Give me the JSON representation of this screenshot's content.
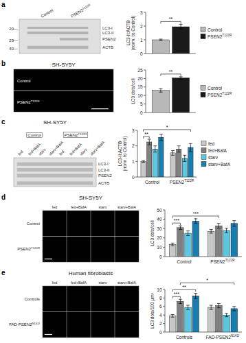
{
  "chart_data": [
    {
      "type": "bar",
      "ylabel": "LC3-II:ACTB\n(norm. to Control)",
      "categories": [
        null
      ],
      "series": [
        {
          "name": "Control",
          "color": "#b8b8b8",
          "values": [
            1.0
          ],
          "errors": [
            0.05
          ]
        },
        {
          "name": "PSEN2T122R",
          "color": "#1a1a1a",
          "values": [
            1.95
          ],
          "errors": [
            0.18
          ]
        }
      ],
      "ylim": [
        0,
        3
      ],
      "yticks": [
        0,
        1,
        2,
        3
      ],
      "legend": "right",
      "tick_labels": "y",
      "annotations": [
        "a",
        "LC3-I",
        "LC3-II",
        "PSEN2",
        "ACTB",
        "20—",
        "29—",
        "40—",
        "Control",
        "PSEN2T122R",
        "**"
      ]
    },
    {
      "type": "bar",
      "title": "SH-SY5Y",
      "ylabel": "LC3 dots/cell",
      "categories": [
        null
      ],
      "series": [
        {
          "name": "Control",
          "color": "#b8b8b8",
          "values": [
            13.0
          ],
          "errors": [
            1.0
          ]
        },
        {
          "name": "PSEN2T122R",
          "color": "#1a1a1a",
          "values": [
            20.3
          ],
          "errors": [
            0.7
          ]
        }
      ],
      "ylim": [
        0,
        25
      ],
      "yticks": [
        0,
        5,
        10,
        15,
        20,
        25
      ],
      "legend": "right",
      "tick_labels": "y",
      "annotations": [
        "b",
        "Control",
        "PSEN2T122R",
        "**"
      ]
    },
    {
      "type": "bar",
      "title": "SH-SY5Y",
      "ylabel": "LC3-II:ACTB\n(norm. to Control)",
      "categories": [
        "Control",
        "PSEN2T122R"
      ],
      "series": [
        {
          "name": "fed",
          "color": "#c8c8c8",
          "values": [
            1.0,
            1.55
          ],
          "errors": [
            0.05,
            0.15
          ]
        },
        {
          "name": "fed+BafA",
          "color": "#808080",
          "values": [
            2.25,
            1.8
          ],
          "errors": [
            0.18,
            0.2
          ]
        },
        {
          "name": "starv",
          "color": "#5bc8e0",
          "values": [
            1.8,
            1.2
          ],
          "errors": [
            0.2,
            0.2
          ]
        },
        {
          "name": "starv+BafA",
          "color": "#1a7db0",
          "values": [
            2.55,
            1.9
          ],
          "errors": [
            0.2,
            0.25
          ]
        }
      ],
      "ylim": [
        0,
        3
      ],
      "yticks": [
        0,
        1,
        2,
        3
      ],
      "legend": "right",
      "annotations": [
        "c",
        "LC3-I",
        "LC3-II",
        "PSEN2",
        "ACTB",
        "Control",
        "PSEN2T122R",
        "fed",
        "fed+BafA",
        "starv",
        "starv+BafA",
        "fed",
        "fed+BafA",
        "starv",
        "starv+BafA",
        "**",
        "*"
      ]
    },
    {
      "type": "bar",
      "title": "SH-SY5Y",
      "ylabel": "LC3 dots/cell",
      "categories": [
        "Control",
        "PSEN2T122R"
      ],
      "series": [
        {
          "color": "#c8c8c8",
          "values": [
            13.0,
            27.0
          ],
          "errors": [
            1.5,
            2.0
          ]
        },
        {
          "color": "#808080",
          "values": [
            31.0,
            33.0
          ],
          "errors": [
            2.0,
            2.5
          ]
        },
        {
          "color": "#5bc8e0",
          "values": [
            25.0,
            28.0
          ],
          "errors": [
            2.5,
            2.5
          ]
        },
        {
          "color": "#1a7db0",
          "values": [
            38.0,
            35.5
          ],
          "errors": [
            2.5,
            3.0
          ]
        }
      ],
      "ylim": [
        0,
        50
      ],
      "yticks": [
        0,
        10,
        20,
        30,
        40,
        50
      ],
      "annotations": [
        "d",
        "Control",
        "PSEN2T122R",
        "fed",
        "fed+BafA",
        "starv",
        "starv+BafA",
        "***",
        "***"
      ]
    },
    {
      "type": "bar",
      "title": "Human fibroblasts",
      "ylabel": "LC3 dots/100 µm²",
      "categories": [
        "Controls",
        "FAD-PSEN2N141I"
      ],
      "series": [
        {
          "color": "#c8c8c8",
          "values": [
            3.8,
            5.8
          ],
          "errors": [
            0.3,
            0.5
          ]
        },
        {
          "color": "#808080",
          "values": [
            7.2,
            6.2
          ],
          "errors": [
            0.5,
            0.5
          ]
        },
        {
          "color": "#5bc8e0",
          "values": [
            5.8,
            4.0
          ],
          "errors": [
            0.5,
            0.4
          ]
        },
        {
          "color": "#1a7db0",
          "values": [
            8.5,
            5.5
          ],
          "errors": [
            0.6,
            0.5
          ]
        }
      ],
      "ylim": [
        0,
        10
      ],
      "yticks": [
        0,
        2,
        4,
        6,
        8,
        10
      ],
      "annotations": [
        "e",
        "Controls",
        "FAD-PSEN2N141I",
        "fed",
        "fed+BafA",
        "starv",
        "starv+BafA",
        "***",
        "**",
        "*"
      ]
    }
  ]
}
